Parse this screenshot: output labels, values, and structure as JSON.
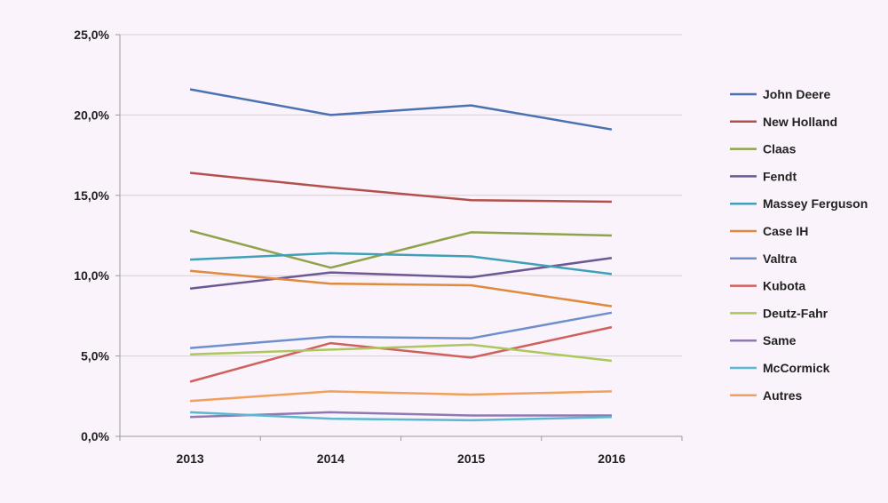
{
  "chart_data": {
    "type": "line",
    "title": "",
    "xlabel": "",
    "ylabel": "",
    "x": [
      "2013",
      "2014",
      "2015",
      "2016"
    ],
    "ylim": [
      0,
      25
    ],
    "yticks": [
      0,
      5,
      10,
      15,
      20,
      25
    ],
    "ytick_labels": [
      "0,0%",
      "5,0%",
      "10,0%",
      "15,0%",
      "20,0%",
      "25,0%"
    ],
    "grid": true,
    "legend_position": "right",
    "series": [
      {
        "name": "John Deere",
        "color": "#4a72b0",
        "values": [
          21.6,
          20.0,
          20.6,
          19.1
        ]
      },
      {
        "name": "New Holland",
        "color": "#b3504c",
        "values": [
          16.4,
          15.5,
          14.7,
          14.6
        ]
      },
      {
        "name": "Claas",
        "color": "#8ea34a",
        "values": [
          12.8,
          10.5,
          12.7,
          12.5
        ]
      },
      {
        "name": "Fendt",
        "color": "#6e5893",
        "values": [
          9.2,
          10.2,
          9.9,
          11.1
        ]
      },
      {
        "name": "Massey Ferguson",
        "color": "#41a0b8",
        "values": [
          11.0,
          11.4,
          11.2,
          10.1
        ]
      },
      {
        "name": "Case IH",
        "color": "#e08a3c",
        "values": [
          10.3,
          9.5,
          9.4,
          8.1
        ]
      },
      {
        "name": "Valtra",
        "color": "#6d90cc",
        "values": [
          5.5,
          6.2,
          6.1,
          7.7
        ]
      },
      {
        "name": "Kubota",
        "color": "#d0605c",
        "values": [
          3.4,
          5.8,
          4.9,
          6.8
        ]
      },
      {
        "name": "Deutz-Fahr",
        "color": "#abc75e",
        "values": [
          5.1,
          5.4,
          5.7,
          4.7
        ]
      },
      {
        "name": "Same",
        "color": "#9079b3",
        "values": [
          1.2,
          1.5,
          1.3,
          1.3
        ]
      },
      {
        "name": "McCormick",
        "color": "#5ab8d0",
        "values": [
          1.5,
          1.1,
          1.0,
          1.2
        ]
      },
      {
        "name": "Autres",
        "color": "#f0a05a",
        "values": [
          2.2,
          2.8,
          2.6,
          2.8
        ]
      }
    ]
  }
}
